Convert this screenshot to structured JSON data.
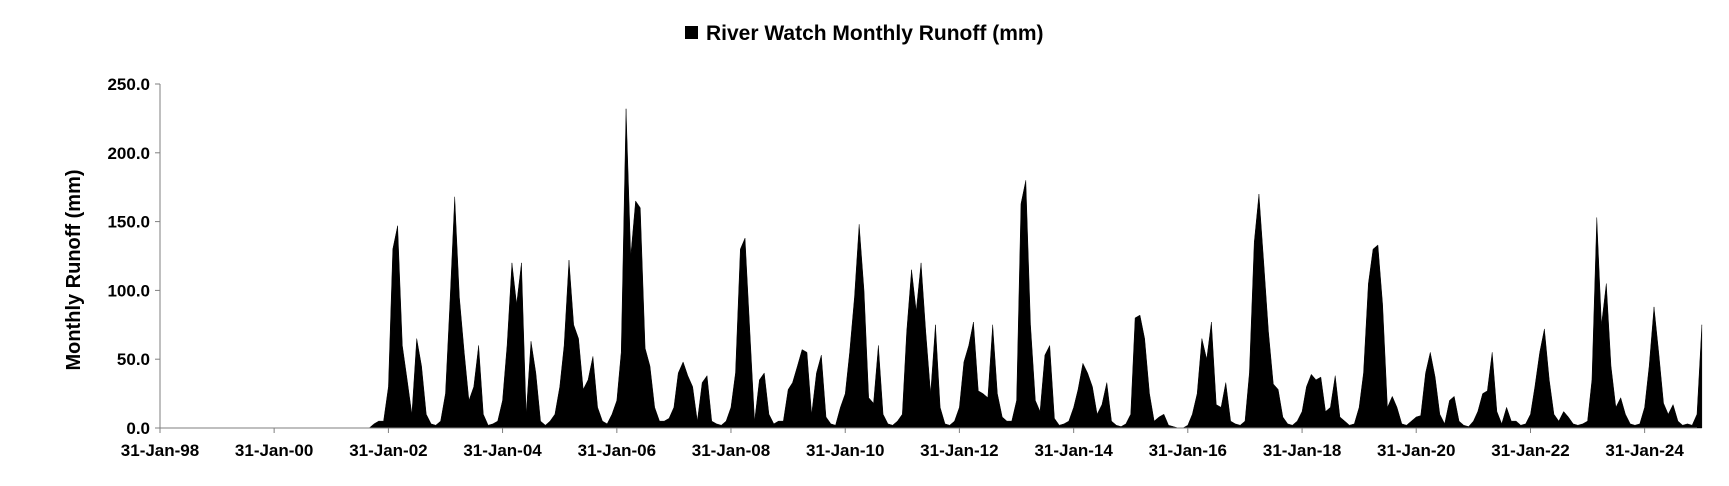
{
  "chart_data": {
    "type": "area",
    "title": "",
    "xlabel": "",
    "ylabel": "Monthly Runoff (mm)",
    "ylim": [
      0,
      250
    ],
    "yticks": [
      "0.0",
      "50.0",
      "100.0",
      "150.0",
      "200.0",
      "250.0"
    ],
    "xlim": [
      "1998-01-31",
      "2024-12-31"
    ],
    "xticks": [
      "31-Jan-98",
      "31-Jan-00",
      "31-Jan-02",
      "31-Jan-04",
      "31-Jan-06",
      "31-Jan-08",
      "31-Jan-10",
      "31-Jan-12",
      "31-Jan-14",
      "31-Jan-16",
      "31-Jan-18",
      "31-Jan-20",
      "31-Jan-22",
      "31-Jan-24"
    ],
    "xtick_dates": [
      "1998-01-31",
      "2000-01-31",
      "2002-01-31",
      "2004-01-31",
      "2006-01-31",
      "2008-01-31",
      "2010-01-31",
      "2012-01-31",
      "2014-01-31",
      "2016-01-31",
      "2018-01-31",
      "2020-01-31",
      "2022-01-31",
      "2024-01-31"
    ],
    "grid": false,
    "legend": {
      "position": "top-center"
    },
    "series": [
      {
        "name": "River Watch Monthly Runoff (mm)",
        "color": "#000000",
        "start": "1998-01",
        "values": [
          0,
          0,
          0,
          0,
          0,
          0,
          0,
          0,
          0,
          0,
          0,
          0,
          0,
          0,
          0,
          0,
          0,
          0,
          0,
          0,
          0,
          0,
          0,
          0,
          0,
          0,
          0,
          0,
          0,
          0,
          0,
          0,
          0,
          0,
          0,
          0,
          0,
          0,
          0,
          0,
          0,
          0,
          0,
          0,
          0,
          3,
          5,
          5,
          30,
          130,
          147,
          60,
          35,
          10,
          65,
          45,
          10,
          3,
          2,
          5,
          25,
          90,
          168,
          95,
          55,
          20,
          30,
          60,
          10,
          2,
          3,
          5,
          20,
          60,
          120,
          90,
          120,
          10,
          63,
          40,
          5,
          2,
          5,
          10,
          30,
          60,
          122,
          75,
          65,
          28,
          35,
          52,
          15,
          5,
          3,
          10,
          20,
          55,
          232,
          125,
          165,
          160,
          58,
          45,
          15,
          5,
          5,
          7,
          15,
          40,
          48,
          38,
          30,
          5,
          33,
          38,
          5,
          3,
          2,
          5,
          15,
          40,
          130,
          138,
          70,
          5,
          35,
          40,
          10,
          3,
          5,
          5,
          28,
          33,
          45,
          57,
          55,
          10,
          40,
          53,
          8,
          3,
          2,
          15,
          25,
          55,
          95,
          148,
          100,
          22,
          18,
          60,
          10,
          3,
          2,
          5,
          10,
          70,
          115,
          85,
          120,
          70,
          25,
          75,
          15,
          3,
          2,
          5,
          15,
          48,
          60,
          77,
          27,
          25,
          22,
          75,
          25,
          8,
          5,
          5,
          20,
          163,
          180,
          75,
          20,
          12,
          53,
          60,
          7,
          2,
          3,
          5,
          15,
          28,
          47,
          40,
          30,
          10,
          17,
          33,
          5,
          2,
          1,
          3,
          10,
          80,
          82,
          65,
          25,
          5,
          8,
          10,
          2,
          1,
          0,
          0,
          2,
          10,
          25,
          65,
          50,
          77,
          17,
          15,
          33,
          5,
          3,
          2,
          5,
          40,
          135,
          170,
          120,
          70,
          32,
          28,
          8,
          3,
          2,
          5,
          12,
          30,
          39,
          35,
          37,
          12,
          15,
          38,
          8,
          5,
          2,
          3,
          15,
          40,
          105,
          130,
          133,
          90,
          15,
          23,
          15,
          3,
          2,
          5,
          8,
          9,
          40,
          55,
          37,
          10,
          3,
          20,
          23,
          5,
          2,
          1,
          5,
          12,
          25,
          27,
          55,
          12,
          3,
          15,
          5,
          5,
          2,
          3,
          10,
          30,
          55,
          72,
          35,
          10,
          5,
          12,
          8,
          3,
          2,
          3,
          5,
          35,
          153,
          75,
          105,
          45,
          15,
          22,
          10,
          3,
          2,
          3,
          15,
          45,
          88,
          55,
          18,
          10,
          17,
          5,
          2,
          3,
          2,
          10,
          75
        ]
      }
    ]
  }
}
